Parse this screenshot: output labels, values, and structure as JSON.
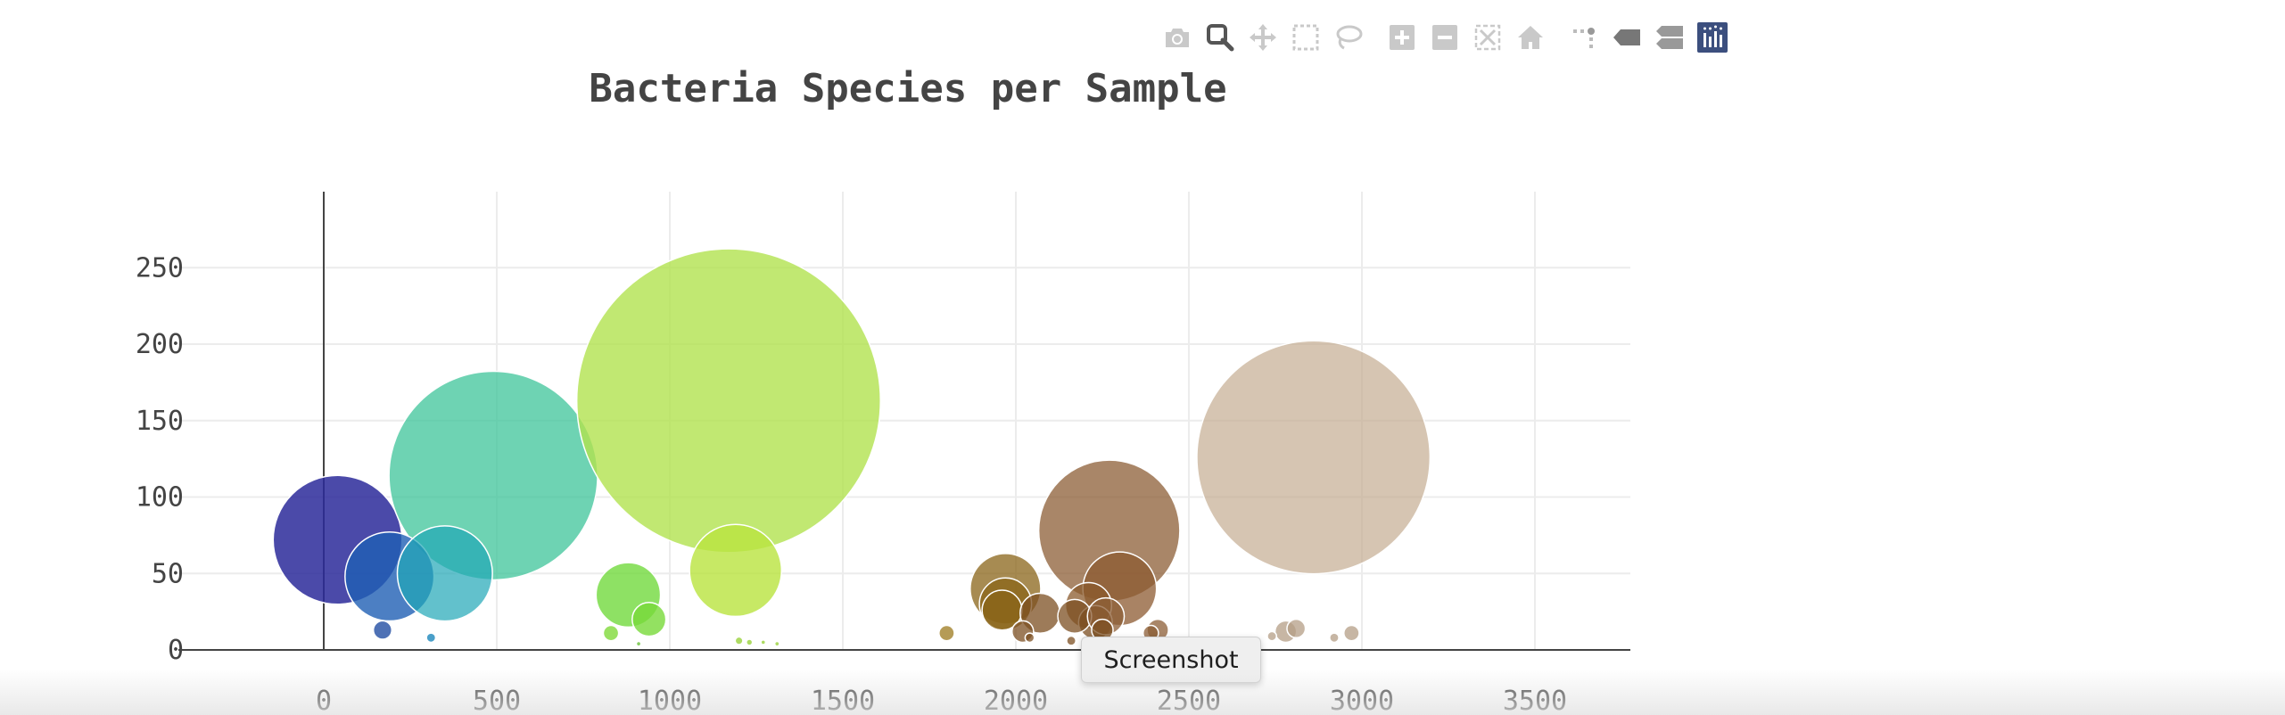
{
  "toolbar": {
    "buttons": [
      {
        "name": "download-plot-button",
        "icon": "camera-icon"
      },
      {
        "name": "zoom-button",
        "icon": "magnifier-icon",
        "active": true
      },
      {
        "name": "pan-button",
        "icon": "move-arrows-icon"
      },
      {
        "name": "box-select-button",
        "icon": "dashed-box-icon"
      },
      {
        "name": "lasso-select-button",
        "icon": "lasso-icon"
      },
      {
        "name": "zoom-in-button",
        "icon": "plus-box-icon"
      },
      {
        "name": "zoom-out-button",
        "icon": "minus-box-icon"
      },
      {
        "name": "autoscale-button",
        "icon": "autoscale-icon"
      },
      {
        "name": "reset-axes-button",
        "icon": "home-icon"
      },
      {
        "name": "spike-lines-button",
        "icon": "spike-lines-icon"
      },
      {
        "name": "hover-closest-button",
        "icon": "tag-icon"
      },
      {
        "name": "hover-compare-button",
        "icon": "double-tag-icon"
      },
      {
        "name": "plotly-logo-button",
        "icon": "plotly-logo-icon"
      }
    ]
  },
  "tooltip": {
    "text": "Screenshot"
  },
  "chart_data": {
    "type": "scatter",
    "mode": "bubble",
    "title": "Bacteria Species per Sample",
    "xlabel": "",
    "ylabel": "",
    "xlim": [
      -400,
      3800
    ],
    "ylim": [
      -5,
      295
    ],
    "xticks": [
      0,
      500,
      1000,
      1500,
      2000,
      2500,
      3000,
      3500
    ],
    "yticks": [
      0,
      50,
      100,
      150,
      200,
      250
    ],
    "grid": true,
    "points": [
      {
        "x": 40,
        "y": 72,
        "r": 42,
        "color": "#2c2a9a",
        "opacity": 0.85
      },
      {
        "x": 490,
        "y": 114,
        "r": 68,
        "color": "#3ec49a",
        "opacity": 0.75
      },
      {
        "x": 1170,
        "y": 163,
        "r": 99,
        "color": "#b1e24f",
        "opacity": 0.8
      },
      {
        "x": 2270,
        "y": 78,
        "r": 46,
        "color": "#8c5e36",
        "opacity": 0.75
      },
      {
        "x": 2860,
        "y": 126,
        "r": 76,
        "color": "#c4ad92",
        "opacity": 0.7
      },
      {
        "x": 190,
        "y": 48,
        "r": 29,
        "color": "#1f5fb4",
        "opacity": 0.8
      },
      {
        "x": 350,
        "y": 50,
        "r": 31,
        "color": "#1fa6b6",
        "opacity": 0.7
      },
      {
        "x": 1190,
        "y": 52,
        "r": 30,
        "color": "#b9e33f",
        "opacity": 0.8
      },
      {
        "x": 880,
        "y": 36,
        "r": 21,
        "color": "#72d93d",
        "opacity": 0.8
      },
      {
        "x": 940,
        "y": 20,
        "r": 11,
        "color": "#78d93a",
        "opacity": 0.8
      },
      {
        "x": 830,
        "y": 11,
        "r": 5,
        "color": "#7fd93a",
        "opacity": 0.8
      },
      {
        "x": 170,
        "y": 13,
        "r": 6,
        "color": "#2f58a8",
        "opacity": 0.85
      },
      {
        "x": 310,
        "y": 8,
        "r": 3,
        "color": "#2a8ec0",
        "opacity": 0.85
      },
      {
        "x": 1800,
        "y": 11,
        "r": 5,
        "color": "#9c7a1e",
        "opacity": 0.75
      },
      {
        "x": 1970,
        "y": 40,
        "r": 23,
        "color": "#8a6418",
        "opacity": 0.75
      },
      {
        "x": 1970,
        "y": 30,
        "r": 17,
        "color": "#8a6418",
        "opacity": 0.75
      },
      {
        "x": 1960,
        "y": 26,
        "r": 13,
        "color": "#8a6418",
        "opacity": 0.75
      },
      {
        "x": 2070,
        "y": 24,
        "r": 13,
        "color": "#7c4f22",
        "opacity": 0.75
      },
      {
        "x": 2020,
        "y": 12,
        "r": 7,
        "color": "#7c4f22",
        "opacity": 0.75
      },
      {
        "x": 2300,
        "y": 40,
        "r": 24,
        "color": "#8c5a30",
        "opacity": 0.75
      },
      {
        "x": 2210,
        "y": 29,
        "r": 15,
        "color": "#8a5a2c",
        "opacity": 0.75
      },
      {
        "x": 2230,
        "y": 18,
        "r": 11,
        "color": "#7c4f22",
        "opacity": 0.75
      },
      {
        "x": 2170,
        "y": 22,
        "r": 11,
        "color": "#7c4f22",
        "opacity": 0.75
      },
      {
        "x": 2260,
        "y": 22,
        "r": 12,
        "color": "#8c5e36",
        "opacity": 0.75
      },
      {
        "x": 2250,
        "y": 13,
        "r": 7,
        "color": "#7c4f22",
        "opacity": 0.75
      },
      {
        "x": 2410,
        "y": 13,
        "r": 7,
        "color": "#8c5e36",
        "opacity": 0.75
      },
      {
        "x": 2390,
        "y": 11,
        "r": 5,
        "color": "#8c5e36",
        "opacity": 0.75
      },
      {
        "x": 2040,
        "y": 8,
        "r": 3,
        "color": "#7c4f22",
        "opacity": 0.75
      },
      {
        "x": 2160,
        "y": 6,
        "r": 3,
        "color": "#7c4f22",
        "opacity": 0.75
      },
      {
        "x": 2780,
        "y": 12,
        "r": 7,
        "color": "#b49e86",
        "opacity": 0.75
      },
      {
        "x": 2810,
        "y": 14,
        "r": 6,
        "color": "#b49e86",
        "opacity": 0.75
      },
      {
        "x": 2970,
        "y": 11,
        "r": 5,
        "color": "#b49e86",
        "opacity": 0.75
      },
      {
        "x": 2740,
        "y": 9,
        "r": 3,
        "color": "#b49e86",
        "opacity": 0.75
      },
      {
        "x": 2920,
        "y": 8,
        "r": 3,
        "color": "#b49e86",
        "opacity": 0.75
      },
      {
        "x": 1200,
        "y": 6,
        "r": 2.5,
        "color": "#9ad23c",
        "opacity": 0.8
      },
      {
        "x": 1230,
        "y": 5,
        "r": 2,
        "color": "#9ad23c",
        "opacity": 0.8
      },
      {
        "x": 1270,
        "y": 5,
        "r": 1.5,
        "color": "#9ad23c",
        "opacity": 0.8
      },
      {
        "x": 910,
        "y": 4,
        "r": 1.5,
        "color": "#6ac23a",
        "opacity": 0.8
      },
      {
        "x": 1310,
        "y": 4,
        "r": 1.5,
        "color": "#9ad23c",
        "opacity": 0.8
      },
      {
        "x": 2470,
        "y": 4,
        "r": 1.5,
        "color": "#8c5e36",
        "opacity": 0.8
      },
      {
        "x": 2700,
        "y": 5,
        "r": 2,
        "color": "#b49e86",
        "opacity": 0.8
      }
    ]
  }
}
